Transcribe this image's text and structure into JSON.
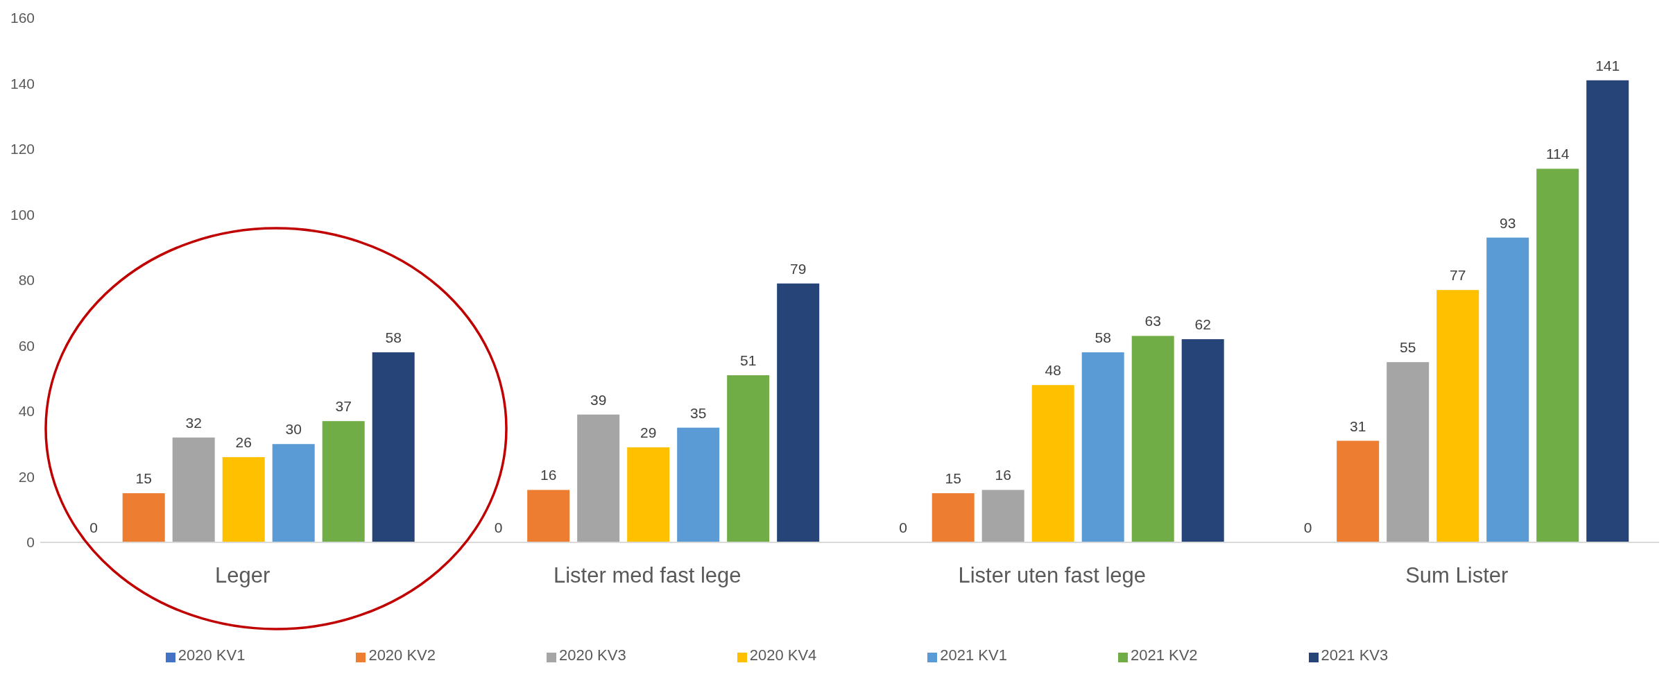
{
  "chart_data": {
    "type": "bar",
    "categories": [
      "Leger",
      "Lister med fast lege",
      "Lister uten  fast lege",
      "Sum Lister"
    ],
    "series": [
      {
        "name": "2020 KV1",
        "color": "#4472c4",
        "values": [
          0,
          0,
          0,
          0
        ]
      },
      {
        "name": "2020 KV2",
        "color": "#ed7d31",
        "values": [
          15,
          16,
          15,
          31
        ]
      },
      {
        "name": "2020 KV3",
        "color": "#a5a5a5",
        "values": [
          32,
          39,
          16,
          55
        ]
      },
      {
        "name": "2020 KV4",
        "color": "#ffc000",
        "values": [
          26,
          29,
          48,
          77
        ]
      },
      {
        "name": "2021 KV1",
        "color": "#5b9bd5",
        "values": [
          30,
          35,
          58,
          93
        ]
      },
      {
        "name": "2021 KV2",
        "color": "#70ad47",
        "values": [
          37,
          51,
          63,
          114
        ]
      },
      {
        "name": "2021 KV3",
        "color": "#264478",
        "values": [
          58,
          79,
          62,
          141
        ]
      }
    ],
    "ylim": [
      0,
      160
    ],
    "yticks": [
      0,
      20,
      40,
      60,
      80,
      100,
      120,
      140,
      160
    ],
    "grid": false,
    "legend": "bottom",
    "data_labels": true
  }
}
